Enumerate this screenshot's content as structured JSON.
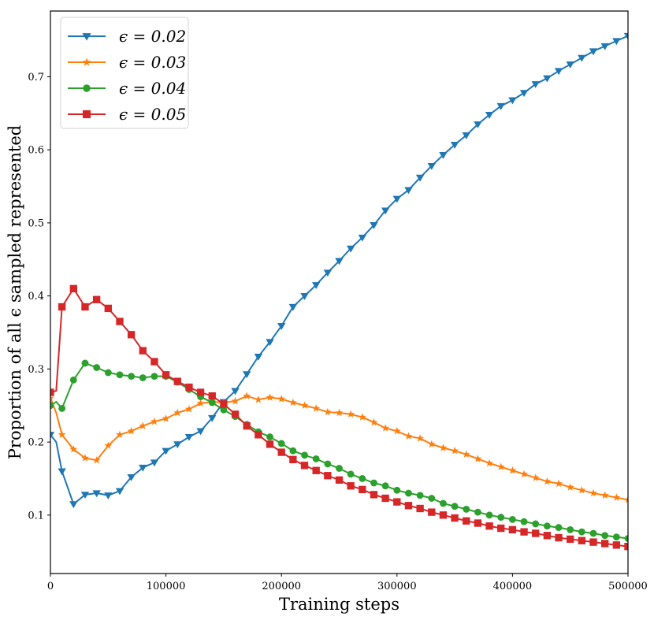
{
  "chart_data": {
    "type": "line",
    "title": "",
    "xlabel": "Training steps",
    "ylabel": "Proportion of all ϵ sampled represented",
    "xlim": [
      0,
      500000
    ],
    "ylim": [
      0.02,
      0.79
    ],
    "xticks": [
      0,
      100000,
      200000,
      300000,
      400000,
      500000
    ],
    "yticks": [
      0.1,
      0.2,
      0.3,
      0.4,
      0.5,
      0.6,
      0.7
    ],
    "grid": false,
    "legend_position": "top-left",
    "series": [
      {
        "name": "ϵ = 0.02",
        "color": "#1f77b4",
        "marker": "triangle-down",
        "x": [
          0,
          5000,
          10000,
          20000,
          30000,
          40000,
          50000,
          60000,
          70000,
          80000,
          90000,
          100000,
          110000,
          120000,
          130000,
          140000,
          150000,
          160000,
          170000,
          180000,
          190000,
          200000,
          210000,
          220000,
          230000,
          240000,
          250000,
          260000,
          270000,
          280000,
          290000,
          300000,
          310000,
          320000,
          330000,
          340000,
          350000,
          360000,
          370000,
          380000,
          390000,
          400000,
          410000,
          420000,
          430000,
          440000,
          450000,
          460000,
          470000,
          480000,
          490000,
          500000
        ],
        "values": [
          0.21,
          0.2,
          0.16,
          0.115,
          0.128,
          0.13,
          0.127,
          0.133,
          0.152,
          0.165,
          0.172,
          0.188,
          0.197,
          0.207,
          0.215,
          0.233,
          0.255,
          0.27,
          0.293,
          0.317,
          0.337,
          0.359,
          0.385,
          0.4,
          0.415,
          0.432,
          0.448,
          0.465,
          0.48,
          0.497,
          0.517,
          0.533,
          0.545,
          0.562,
          0.578,
          0.593,
          0.607,
          0.62,
          0.635,
          0.648,
          0.66,
          0.668,
          0.678,
          0.69,
          0.698,
          0.708,
          0.717,
          0.726,
          0.735,
          0.742,
          0.749,
          0.756
        ]
      },
      {
        "name": "ϵ = 0.03",
        "color": "#ff7f0e",
        "marker": "star",
        "x": [
          0,
          5000,
          10000,
          20000,
          30000,
          40000,
          50000,
          60000,
          70000,
          80000,
          90000,
          100000,
          110000,
          120000,
          130000,
          140000,
          150000,
          160000,
          170000,
          180000,
          190000,
          200000,
          210000,
          220000,
          230000,
          240000,
          250000,
          260000,
          270000,
          280000,
          290000,
          300000,
          310000,
          320000,
          330000,
          340000,
          350000,
          360000,
          370000,
          380000,
          390000,
          400000,
          410000,
          420000,
          430000,
          440000,
          450000,
          460000,
          470000,
          480000,
          490000,
          500000
        ],
        "values": [
          0.26,
          0.24,
          0.21,
          0.19,
          0.178,
          0.175,
          0.195,
          0.21,
          0.215,
          0.222,
          0.228,
          0.232,
          0.24,
          0.245,
          0.253,
          0.255,
          0.254,
          0.256,
          0.263,
          0.258,
          0.261,
          0.259,
          0.254,
          0.25,
          0.246,
          0.241,
          0.24,
          0.238,
          0.234,
          0.227,
          0.219,
          0.215,
          0.208,
          0.205,
          0.197,
          0.192,
          0.188,
          0.183,
          0.177,
          0.171,
          0.166,
          0.161,
          0.156,
          0.151,
          0.146,
          0.143,
          0.138,
          0.134,
          0.13,
          0.127,
          0.124,
          0.121
        ]
      },
      {
        "name": "ϵ = 0.04",
        "color": "#2ca02c",
        "marker": "circle",
        "x": [
          0,
          5000,
          10000,
          20000,
          30000,
          40000,
          50000,
          60000,
          70000,
          80000,
          90000,
          100000,
          110000,
          120000,
          130000,
          140000,
          150000,
          160000,
          170000,
          180000,
          190000,
          200000,
          210000,
          220000,
          230000,
          240000,
          250000,
          260000,
          270000,
          280000,
          290000,
          300000,
          310000,
          320000,
          330000,
          340000,
          350000,
          360000,
          370000,
          380000,
          390000,
          400000,
          410000,
          420000,
          430000,
          440000,
          450000,
          460000,
          470000,
          480000,
          490000,
          500000
        ],
        "values": [
          0.25,
          0.255,
          0.246,
          0.285,
          0.308,
          0.302,
          0.295,
          0.292,
          0.29,
          0.288,
          0.29,
          0.29,
          0.282,
          0.272,
          0.262,
          0.254,
          0.244,
          0.235,
          0.224,
          0.214,
          0.207,
          0.198,
          0.188,
          0.182,
          0.177,
          0.17,
          0.164,
          0.156,
          0.15,
          0.144,
          0.14,
          0.134,
          0.13,
          0.127,
          0.123,
          0.116,
          0.112,
          0.108,
          0.104,
          0.1,
          0.097,
          0.094,
          0.091,
          0.088,
          0.085,
          0.083,
          0.08,
          0.077,
          0.075,
          0.072,
          0.07,
          0.068
        ]
      },
      {
        "name": "ϵ = 0.05",
        "color": "#d62728",
        "marker": "square",
        "x": [
          0,
          5000,
          10000,
          20000,
          30000,
          40000,
          50000,
          60000,
          70000,
          80000,
          90000,
          100000,
          110000,
          120000,
          130000,
          140000,
          150000,
          160000,
          170000,
          180000,
          190000,
          200000,
          210000,
          220000,
          230000,
          240000,
          250000,
          260000,
          270000,
          280000,
          290000,
          300000,
          310000,
          320000,
          330000,
          340000,
          350000,
          360000,
          370000,
          380000,
          390000,
          400000,
          410000,
          420000,
          430000,
          440000,
          450000,
          460000,
          470000,
          480000,
          490000,
          500000
        ],
        "values": [
          0.268,
          0.27,
          0.385,
          0.41,
          0.385,
          0.395,
          0.383,
          0.365,
          0.347,
          0.325,
          0.31,
          0.292,
          0.283,
          0.275,
          0.268,
          0.263,
          0.252,
          0.238,
          0.222,
          0.21,
          0.197,
          0.186,
          0.176,
          0.168,
          0.161,
          0.154,
          0.148,
          0.14,
          0.135,
          0.128,
          0.123,
          0.118,
          0.113,
          0.109,
          0.104,
          0.1,
          0.096,
          0.092,
          0.089,
          0.085,
          0.082,
          0.08,
          0.077,
          0.075,
          0.072,
          0.069,
          0.067,
          0.065,
          0.063,
          0.061,
          0.059,
          0.057
        ]
      }
    ]
  }
}
